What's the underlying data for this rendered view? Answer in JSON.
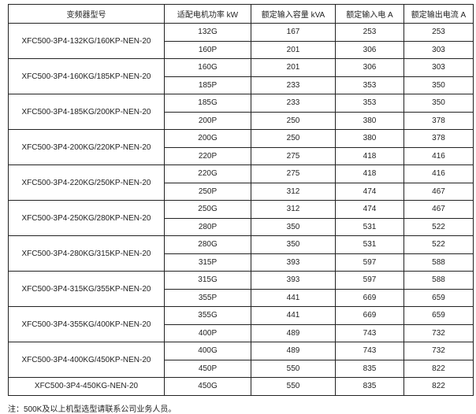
{
  "headers": [
    "变频器型号",
    "适配电机功率 kW",
    "额定输入容量 kVA",
    "额定输入电 A",
    "额定输出电流 A"
  ],
  "groups": [
    {
      "model": "XFC500-3P4-132KG/160KP-NEN-20",
      "rows": [
        [
          "132G",
          "167",
          "253",
          "253"
        ],
        [
          "160P",
          "201",
          "306",
          "303"
        ]
      ]
    },
    {
      "model": "XFC500-3P4-160KG/185KP-NEN-20",
      "rows": [
        [
          "160G",
          "201",
          "306",
          "303"
        ],
        [
          "185P",
          "233",
          "353",
          "350"
        ]
      ]
    },
    {
      "model": "XFC500-3P4-185KG/200KP-NEN-20",
      "rows": [
        [
          "185G",
          "233",
          "353",
          "350"
        ],
        [
          "200P",
          "250",
          "380",
          "378"
        ]
      ]
    },
    {
      "model": "XFC500-3P4-200KG/220KP-NEN-20",
      "rows": [
        [
          "200G",
          "250",
          "380",
          "378"
        ],
        [
          "220P",
          "275",
          "418",
          "416"
        ]
      ]
    },
    {
      "model": "XFC500-3P4-220KG/250KP-NEN-20",
      "rows": [
        [
          "220G",
          "275",
          "418",
          "416"
        ],
        [
          "250P",
          "312",
          "474",
          "467"
        ]
      ]
    },
    {
      "model": "XFC500-3P4-250KG/280KP-NEN-20",
      "rows": [
        [
          "250G",
          "312",
          "474",
          "467"
        ],
        [
          "280P",
          "350",
          "531",
          "522"
        ]
      ]
    },
    {
      "model": "XFC500-3P4-280KG/315KP-NEN-20",
      "rows": [
        [
          "280G",
          "350",
          "531",
          "522"
        ],
        [
          "315P",
          "393",
          "597",
          "588"
        ]
      ]
    },
    {
      "model": "XFC500-3P4-315KG/355KP-NEN-20",
      "rows": [
        [
          "315G",
          "393",
          "597",
          "588"
        ],
        [
          "355P",
          "441",
          "669",
          "659"
        ]
      ]
    },
    {
      "model": "XFC500-3P4-355KG/400KP-NEN-20",
      "rows": [
        [
          "355G",
          "441",
          "669",
          "659"
        ],
        [
          "400P",
          "489",
          "743",
          "732"
        ]
      ]
    },
    {
      "model": "XFC500-3P4-400KG/450KP-NEN-20",
      "rows": [
        [
          "400G",
          "489",
          "743",
          "732"
        ],
        [
          "450P",
          "550",
          "835",
          "822"
        ]
      ]
    },
    {
      "model": "XFC500-3P4-450KG-NEN-20",
      "rows": [
        [
          "450G",
          "550",
          "835",
          "822"
        ]
      ]
    }
  ],
  "note": "注：500K及以上机型选型请联系公司业务人员。"
}
